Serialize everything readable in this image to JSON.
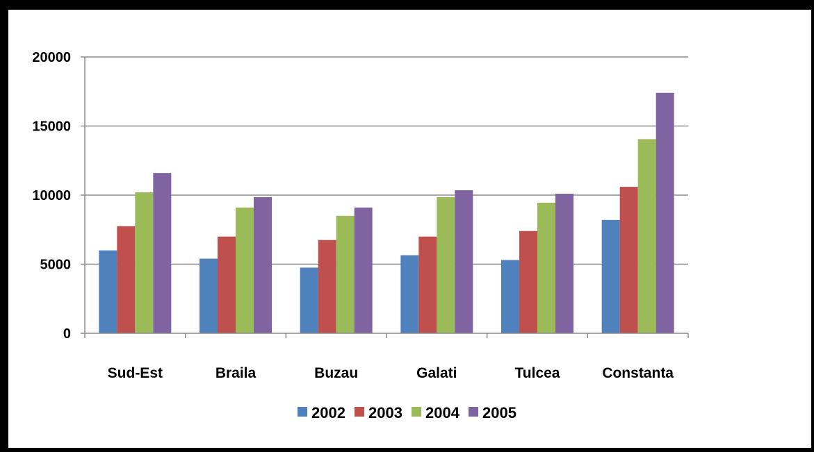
{
  "chart_data": {
    "type": "bar",
    "categories": [
      "Sud-Est",
      "Braila",
      "Buzau",
      "Galati",
      "Tulcea",
      "Constanta"
    ],
    "series": [
      {
        "name": "2002",
        "color": "#4F81BD",
        "values": [
          6000,
          5400,
          4750,
          5650,
          5300,
          8200
        ]
      },
      {
        "name": "2003",
        "color": "#C0504D",
        "values": [
          7750,
          7000,
          6750,
          7000,
          7400,
          10600
        ]
      },
      {
        "name": "2004",
        "color": "#9BBB59",
        "values": [
          10200,
          9100,
          8500,
          9850,
          9450,
          14050
        ]
      },
      {
        "name": "2005",
        "color": "#8064A2",
        "values": [
          11600,
          9850,
          9100,
          10350,
          10100,
          17400
        ]
      }
    ],
    "y_ticks": [
      "0",
      "5000",
      "10000",
      "15000",
      "20000"
    ],
    "ylim": [
      0,
      20000
    ],
    "grid": true,
    "legend_position": "bottom",
    "title": "",
    "xlabel": "",
    "ylabel": ""
  }
}
